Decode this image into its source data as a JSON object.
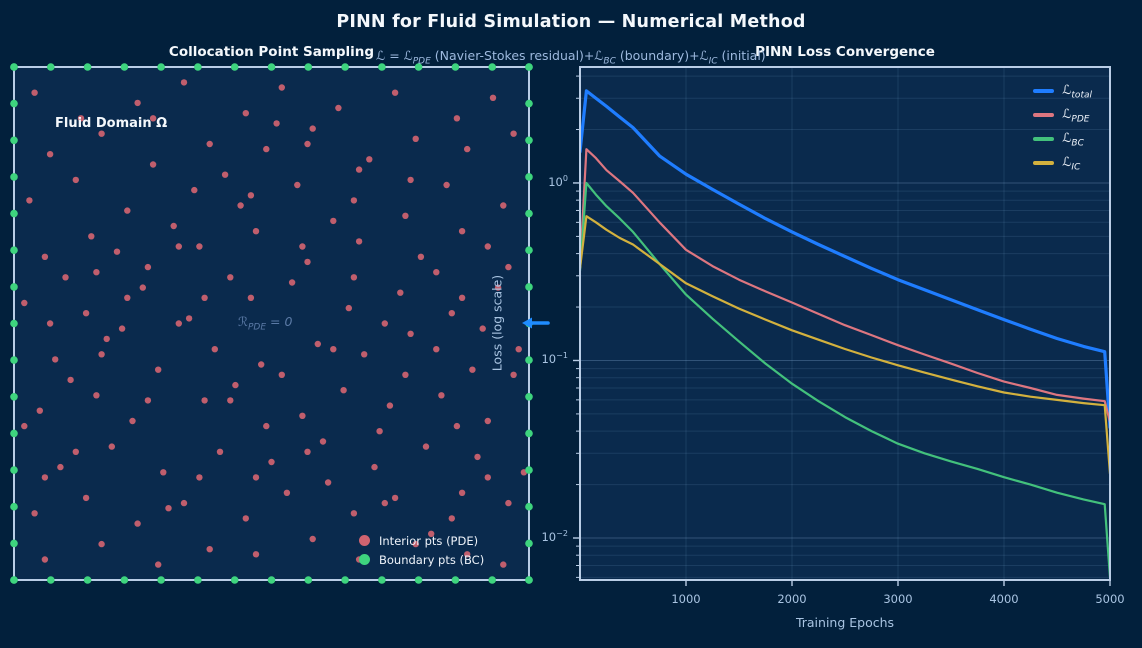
{
  "figure": {
    "title": "PINN for Fluid Simulation — Numerical Method",
    "subtitle_segments": [
      {
        "t": "ℒ = ℒ"
      },
      {
        "sub": "PDE"
      },
      {
        "t": " (Navier-Stokes residual)+ℒ"
      },
      {
        "sub": "BC"
      },
      {
        "t": " (boundary)+ℒ"
      },
      {
        "sub": "IC"
      },
      {
        "t": " (initial)"
      }
    ],
    "colors": {
      "background": "#02203c",
      "axes_background": "#0a2a4d",
      "spine": "#b9cde6",
      "title_text": "#f4f8fc",
      "subtitle_text": "#9db9de",
      "tick_text": "#a9c4e2",
      "grid_major": "rgba(150,190,235,0.28)",
      "grid_minor": "rgba(150,190,235,0.13)",
      "arrow": "#1f8cff"
    }
  },
  "left_plot": {
    "title": "Collocation Point Sampling",
    "domain_label": "Fluid Domain Ω",
    "annotation_segments": [
      {
        "t": "ℛ"
      },
      {
        "sub": "PDE"
      },
      {
        "t": " = 0"
      }
    ],
    "annotation_color": "#5b7aa6",
    "legend": [
      {
        "label": "Interior pts (PDE)",
        "color": "#d06370"
      },
      {
        "label": "Boundary pts (BC)",
        "color": "#3ed47e"
      }
    ]
  },
  "right_plot": {
    "title": "PINN Loss Convergence",
    "xlabel": "Training Epochs",
    "ylabel": "Loss (log scale)",
    "x_ticks": [
      {
        "label": "1000",
        "epoch": 1000
      },
      {
        "label": "2000",
        "epoch": 2000
      },
      {
        "label": "3000",
        "epoch": 3000
      },
      {
        "label": "4000",
        "epoch": 4000
      },
      {
        "label": "5000",
        "epoch": 5000
      }
    ],
    "y_ticks": [
      {
        "base": "10",
        "exp": "0",
        "value": 1
      },
      {
        "base": "10",
        "exp": "−1",
        "value": 0.1
      },
      {
        "base": "10",
        "exp": "−2",
        "value": 0.01
      }
    ],
    "legend": [
      {
        "segments": [
          {
            "t": "ℒ"
          },
          {
            "sub": "total"
          }
        ],
        "color": "#1f7dff"
      },
      {
        "segments": [
          {
            "t": "ℒ"
          },
          {
            "sub": "PDE"
          }
        ],
        "color": "#dd7680"
      },
      {
        "segments": [
          {
            "t": "ℒ"
          },
          {
            "sub": "BC"
          }
        ],
        "color": "#43c17c"
      },
      {
        "segments": [
          {
            "t": "ℒ"
          },
          {
            "sub": "IC"
          }
        ],
        "color": "#d3b13e"
      }
    ]
  },
  "chart_data": [
    {
      "type": "scatter",
      "title": "Collocation Point Sampling",
      "xlim": [
        0,
        1
      ],
      "ylim": [
        0,
        1
      ],
      "series": [
        {
          "name": "Interior pts (PDE)",
          "color": "#d06370",
          "marker_radius": 3.2,
          "points": [
            [
              0.04,
              0.95
            ],
            [
              0.13,
              0.9
            ],
            [
              0.24,
              0.93
            ],
            [
              0.33,
              0.97
            ],
            [
              0.45,
              0.91
            ],
            [
              0.52,
              0.96
            ],
            [
              0.63,
              0.92
            ],
            [
              0.74,
              0.95
            ],
            [
              0.86,
              0.9
            ],
            [
              0.93,
              0.94
            ],
            [
              0.07,
              0.83
            ],
            [
              0.17,
              0.87
            ],
            [
              0.27,
              0.81
            ],
            [
              0.38,
              0.85
            ],
            [
              0.49,
              0.84
            ],
            [
              0.58,
              0.88
            ],
            [
              0.69,
              0.82
            ],
            [
              0.78,
              0.86
            ],
            [
              0.88,
              0.84
            ],
            [
              0.97,
              0.87
            ],
            [
              0.03,
              0.74
            ],
            [
              0.12,
              0.78
            ],
            [
              0.22,
              0.72
            ],
            [
              0.35,
              0.76
            ],
            [
              0.44,
              0.73
            ],
            [
              0.55,
              0.77
            ],
            [
              0.66,
              0.74
            ],
            [
              0.76,
              0.71
            ],
            [
              0.84,
              0.77
            ],
            [
              0.95,
              0.73
            ],
            [
              0.06,
              0.63
            ],
            [
              0.15,
              0.67
            ],
            [
              0.26,
              0.61
            ],
            [
              0.36,
              0.65
            ],
            [
              0.47,
              0.68
            ],
            [
              0.57,
              0.62
            ],
            [
              0.67,
              0.66
            ],
            [
              0.79,
              0.63
            ],
            [
              0.87,
              0.68
            ],
            [
              0.96,
              0.61
            ],
            [
              0.02,
              0.54
            ],
            [
              0.14,
              0.52
            ],
            [
              0.25,
              0.57
            ],
            [
              0.34,
              0.51
            ],
            [
              0.46,
              0.55
            ],
            [
              0.54,
              0.58
            ],
            [
              0.65,
              0.53
            ],
            [
              0.75,
              0.56
            ],
            [
              0.85,
              0.52
            ],
            [
              0.94,
              0.57
            ],
            [
              0.08,
              0.43
            ],
            [
              0.18,
              0.47
            ],
            [
              0.28,
              0.41
            ],
            [
              0.39,
              0.45
            ],
            [
              0.48,
              0.42
            ],
            [
              0.59,
              0.46
            ],
            [
              0.68,
              0.44
            ],
            [
              0.77,
              0.48
            ],
            [
              0.89,
              0.41
            ],
            [
              0.98,
              0.45
            ],
            [
              0.05,
              0.33
            ],
            [
              0.16,
              0.36
            ],
            [
              0.23,
              0.31
            ],
            [
              0.37,
              0.35
            ],
            [
              0.43,
              0.38
            ],
            [
              0.56,
              0.32
            ],
            [
              0.64,
              0.37
            ],
            [
              0.73,
              0.34
            ],
            [
              0.83,
              0.36
            ],
            [
              0.92,
              0.31
            ],
            [
              0.09,
              0.22
            ],
            [
              0.19,
              0.26
            ],
            [
              0.29,
              0.21
            ],
            [
              0.4,
              0.25
            ],
            [
              0.5,
              0.23
            ],
            [
              0.6,
              0.27
            ],
            [
              0.7,
              0.22
            ],
            [
              0.8,
              0.26
            ],
            [
              0.9,
              0.24
            ],
            [
              0.99,
              0.21
            ],
            [
              0.04,
              0.13
            ],
            [
              0.14,
              0.16
            ],
            [
              0.24,
              0.11
            ],
            [
              0.33,
              0.15
            ],
            [
              0.45,
              0.12
            ],
            [
              0.53,
              0.17
            ],
            [
              0.66,
              0.13
            ],
            [
              0.74,
              0.16
            ],
            [
              0.85,
              0.12
            ],
            [
              0.96,
              0.15
            ],
            [
              0.06,
              0.04
            ],
            [
              0.17,
              0.07
            ],
            [
              0.28,
              0.03
            ],
            [
              0.38,
              0.06
            ],
            [
              0.47,
              0.05
            ],
            [
              0.58,
              0.08
            ],
            [
              0.67,
              0.04
            ],
            [
              0.78,
              0.07
            ],
            [
              0.88,
              0.05
            ],
            [
              0.95,
              0.03
            ],
            [
              0.1,
              0.59
            ],
            [
              0.21,
              0.49
            ],
            [
              0.31,
              0.69
            ],
            [
              0.41,
              0.79
            ],
            [
              0.51,
              0.89
            ],
            [
              0.61,
              0.19
            ],
            [
              0.71,
              0.29
            ],
            [
              0.81,
              0.09
            ],
            [
              0.91,
              0.49
            ],
            [
              0.11,
              0.39
            ],
            [
              0.2,
              0.64
            ],
            [
              0.3,
              0.14
            ],
            [
              0.42,
              0.59
            ],
            [
              0.49,
              0.3
            ],
            [
              0.62,
              0.7
            ],
            [
              0.72,
              0.5
            ],
            [
              0.82,
              0.6
            ],
            [
              0.92,
              0.2
            ],
            [
              0.02,
              0.3
            ],
            [
              0.32,
              0.5
            ],
            [
              0.36,
              0.2
            ],
            [
              0.26,
              0.35
            ],
            [
              0.56,
              0.65
            ],
            [
              0.46,
              0.75
            ],
            [
              0.76,
              0.4
            ],
            [
              0.86,
              0.3
            ],
            [
              0.06,
              0.2
            ],
            [
              0.16,
              0.6
            ],
            [
              0.66,
              0.59
            ],
            [
              0.87,
              0.17
            ],
            [
              0.52,
              0.4
            ],
            [
              0.22,
              0.55
            ],
            [
              0.42,
              0.35
            ],
            [
              0.62,
              0.45
            ],
            [
              0.12,
              0.25
            ],
            [
              0.32,
              0.65
            ],
            [
              0.72,
              0.15
            ],
            [
              0.82,
              0.45
            ],
            [
              0.92,
              0.65
            ],
            [
              0.07,
              0.5
            ],
            [
              0.27,
              0.9
            ],
            [
              0.37,
              0.55
            ],
            [
              0.57,
              0.25
            ],
            [
              0.47,
              0.2
            ],
            [
              0.67,
              0.8
            ],
            [
              0.77,
              0.78
            ],
            [
              0.17,
              0.44
            ],
            [
              0.57,
              0.85
            ],
            [
              0.87,
              0.55
            ],
            [
              0.97,
              0.4
            ]
          ]
        },
        {
          "name": "Boundary pts (BC)",
          "color": "#3ed47e",
          "marker_radius": 3.8,
          "placement": "perimeter",
          "points_per_edge": 15
        }
      ]
    },
    {
      "type": "line",
      "title": "PINN Loss Convergence",
      "xlabel": "Training Epochs",
      "ylabel": "Loss (log scale)",
      "yscale": "log",
      "xlim": [
        0,
        5000
      ],
      "ylim": [
        0.0058,
        4.5
      ],
      "grid": true,
      "legend_position": "upper right",
      "x": [
        0,
        60,
        150,
        250,
        375,
        500,
        750,
        1000,
        1250,
        1500,
        1750,
        2000,
        2250,
        2500,
        2750,
        3000,
        3250,
        3500,
        3750,
        4000,
        4250,
        4500,
        4750,
        4950,
        5000
      ],
      "series": [
        {
          "name": "L_total",
          "color": "#1f7dff",
          "width": 3.2,
          "values": [
            1.5,
            3.3,
            3.0,
            2.7,
            2.35,
            2.05,
            1.42,
            1.12,
            0.92,
            0.76,
            0.63,
            0.53,
            0.45,
            0.385,
            0.33,
            0.285,
            0.25,
            0.22,
            0.193,
            0.17,
            0.15,
            0.133,
            0.12,
            0.112,
            0.042
          ]
        },
        {
          "name": "L_PDE",
          "color": "#dd7680",
          "width": 2.2,
          "values": [
            0.33,
            1.55,
            1.38,
            1.18,
            1.02,
            0.88,
            0.6,
            0.42,
            0.34,
            0.285,
            0.245,
            0.212,
            0.183,
            0.158,
            0.139,
            0.122,
            0.108,
            0.096,
            0.085,
            0.076,
            0.07,
            0.064,
            0.061,
            0.059,
            0.045
          ]
        },
        {
          "name": "L_BC",
          "color": "#43c17c",
          "width": 2.2,
          "values": [
            0.32,
            1.0,
            0.86,
            0.74,
            0.63,
            0.53,
            0.35,
            0.235,
            0.172,
            0.128,
            0.096,
            0.074,
            0.059,
            0.048,
            0.04,
            0.034,
            0.03,
            0.027,
            0.0245,
            0.022,
            0.02,
            0.018,
            0.0165,
            0.0155,
            0.006
          ]
        },
        {
          "name": "L_IC",
          "color": "#d3b13e",
          "width": 2.2,
          "values": [
            0.33,
            0.65,
            0.6,
            0.545,
            0.49,
            0.45,
            0.35,
            0.272,
            0.23,
            0.196,
            0.17,
            0.148,
            0.131,
            0.116,
            0.104,
            0.094,
            0.0855,
            0.078,
            0.0715,
            0.066,
            0.0625,
            0.06,
            0.0575,
            0.056,
            0.023
          ]
        }
      ],
      "grid_lines": {
        "major_y": [
          1,
          0.1,
          0.01
        ],
        "minor_y": [
          4,
          3,
          2,
          0.9,
          0.8,
          0.7,
          0.6,
          0.5,
          0.4,
          0.3,
          0.2,
          0.09,
          0.08,
          0.07,
          0.06,
          0.05,
          0.04,
          0.03,
          0.02,
          0.009,
          0.008,
          0.007,
          0.006
        ],
        "major_x": [
          1000,
          2000,
          3000,
          4000
        ]
      }
    }
  ]
}
